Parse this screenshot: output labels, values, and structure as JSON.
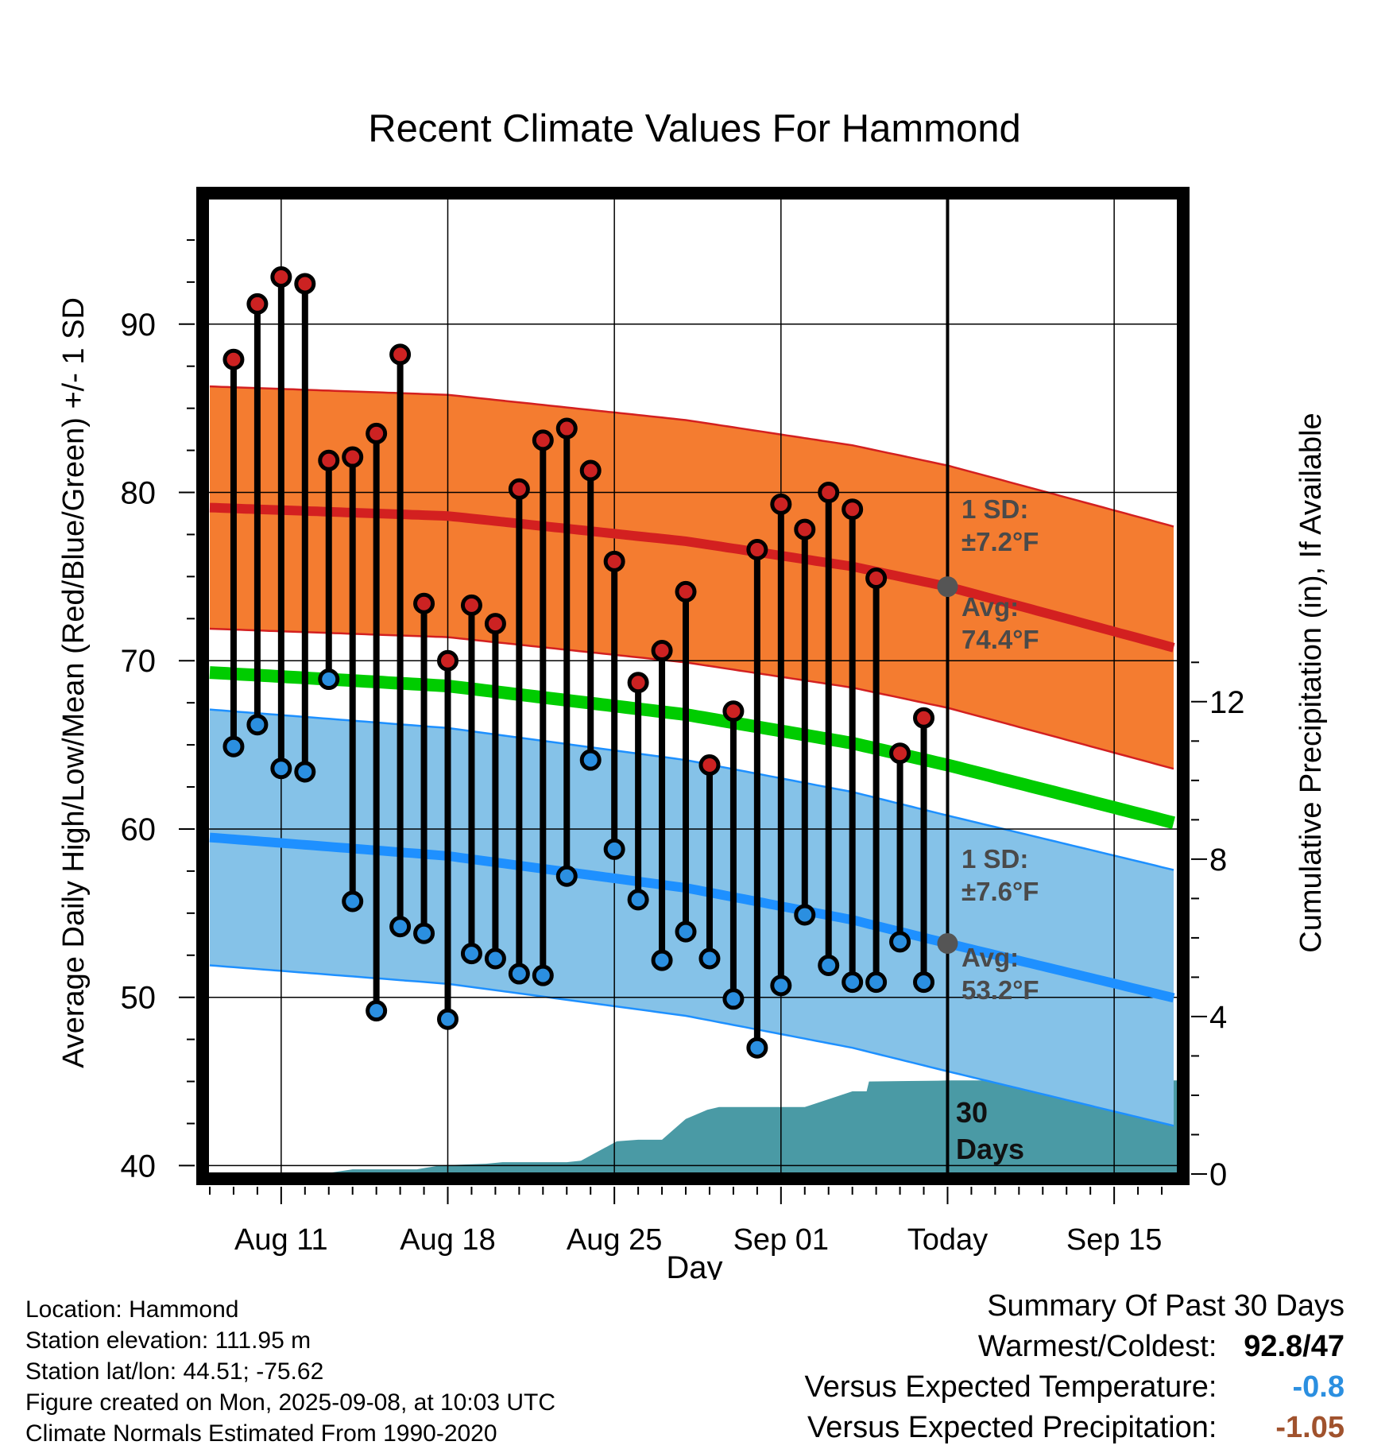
{
  "chart_data": {
    "type": "line",
    "title": "Recent Climate Values For Hammond",
    "xlabel": "Day",
    "ylabel_left": "Average Daily High/Low/Mean (Red/Blue/Green) +/- 1 SD",
    "ylabel_right": "Cumulative Precipitation (in), If Available",
    "x_ticks": [
      {
        "label": "Aug 11",
        "day": 11
      },
      {
        "label": "Aug 18",
        "day": 18
      },
      {
        "label": "Aug 25",
        "day": 25
      },
      {
        "label": "Sep 01",
        "day": 32
      },
      {
        "label": "Today",
        "day": 39
      },
      {
        "label": "Sep 15",
        "day": 46
      }
    ],
    "x_range": [
      7.9,
      48.7
    ],
    "y_left_ticks": [
      "40",
      "50",
      "60",
      "70",
      "80",
      "90"
    ],
    "y_left_range": [
      39.5,
      97.5
    ],
    "y_right_ticks": [
      "0",
      "4",
      "8",
      "12"
    ],
    "y_right_range": [
      0,
      24.8
    ],
    "grid": true,
    "today_day": 39,
    "days": [
      9,
      10,
      11,
      12,
      13,
      14,
      15,
      16,
      17,
      18,
      19,
      20,
      21,
      22,
      23,
      24,
      25,
      26,
      27,
      28,
      29,
      30,
      31,
      32,
      33,
      34,
      35,
      36,
      37,
      38
    ],
    "highs": [
      87.9,
      91.2,
      92.8,
      92.4,
      81.9,
      82.1,
      83.5,
      88.2,
      73.4,
      70.0,
      73.3,
      72.2,
      80.2,
      83.1,
      83.8,
      81.3,
      75.9,
      68.7,
      70.6,
      74.1,
      63.8,
      67.0,
      76.6,
      79.3,
      77.8,
      80.0,
      79.0,
      74.9,
      64.5,
      66.6
    ],
    "lows": [
      64.9,
      66.2,
      63.6,
      63.4,
      68.9,
      55.7,
      49.2,
      54.2,
      53.8,
      48.7,
      52.6,
      52.3,
      51.4,
      51.3,
      57.2,
      64.1,
      58.8,
      55.8,
      52.2,
      53.9,
      52.3,
      49.9,
      47.0,
      50.7,
      54.9,
      51.9,
      50.9,
      50.9,
      53.3,
      50.9
    ],
    "normal_high": {
      "days": [
        8,
        18,
        28,
        35,
        39,
        44,
        48.7
      ],
      "values": [
        79.1,
        78.6,
        77.1,
        75.6,
        74.4,
        72.5,
        70.7
      ]
    },
    "normal_low": {
      "days": [
        8,
        18,
        28,
        35,
        39,
        44,
        48.7
      ],
      "values": [
        59.5,
        58.4,
        56.5,
        54.6,
        53.2,
        51.5,
        49.9
      ]
    },
    "normal_mean": {
      "days": [
        8,
        18,
        28,
        35,
        39,
        44,
        48.7
      ],
      "values": [
        69.3,
        68.5,
        66.8,
        65.1,
        63.8,
        62.0,
        60.3
      ]
    },
    "high_sd": 7.2,
    "low_sd": 7.6,
    "precip_cumulative": {
      "days": [
        8,
        12.7,
        14.0,
        16.7,
        17.7,
        19.6,
        20.3,
        23.0,
        23.6,
        25.1,
        26.0,
        27.0,
        28.0,
        28.9,
        29.4,
        30.0,
        32.1,
        33.0,
        35.0,
        35.6,
        35.7,
        37.0,
        38.6,
        39.0,
        40.0,
        48.7
      ],
      "values": [
        0,
        0,
        0.12,
        0.12,
        0.22,
        0.26,
        0.3,
        0.3,
        0.34,
        0.83,
        0.87,
        0.87,
        1.4,
        1.63,
        1.7,
        1.7,
        1.7,
        1.7,
        2.1,
        2.1,
        2.35,
        2.36,
        2.37,
        2.38,
        2.38,
        2.38
      ]
    },
    "annotations": {
      "high_sd_label": "1 SD:",
      "high_sd_value": "±7.2°F",
      "high_avg_label": "Avg:",
      "high_avg_value": "74.4°F",
      "low_sd_label": "1 SD:",
      "low_sd_value": "±7.6°F",
      "low_avg_label": "Avg:",
      "low_avg_value": "53.2°F",
      "period_number": "30",
      "period_unit": "Days"
    },
    "colors": {
      "high_band": "#f47c30",
      "high_line": "#d32020",
      "low_band": "#85c2e8",
      "low_line": "#1e90ff",
      "mean_line": "#00cc00",
      "precip": "#4a9aa5",
      "high_dot": "#cc2222",
      "low_dot": "#2b8fe0",
      "annotation_text": "#4a4a4a",
      "today_dot": "#555555"
    }
  },
  "footer": {
    "location": "Location: Hammond",
    "elevation": "Station elevation: 111.95 m",
    "latlon": "Station lat/lon: 44.51; -75.62",
    "created": "Figure created on Mon, 2025-09-08, at 10:03 UTC",
    "normals": "Climate Normals Estimated From 1990-2020"
  },
  "summary": {
    "title": "Summary Of Past 30 Days",
    "warmest_coldest_label": "Warmest/Coldest:",
    "warmest_coldest_value": "92.8/47",
    "temp_label": "Versus Expected Temperature:",
    "temp_value": "-0.8",
    "precip_label": "Versus Expected Precipitation:",
    "precip_value": "-1.05"
  }
}
